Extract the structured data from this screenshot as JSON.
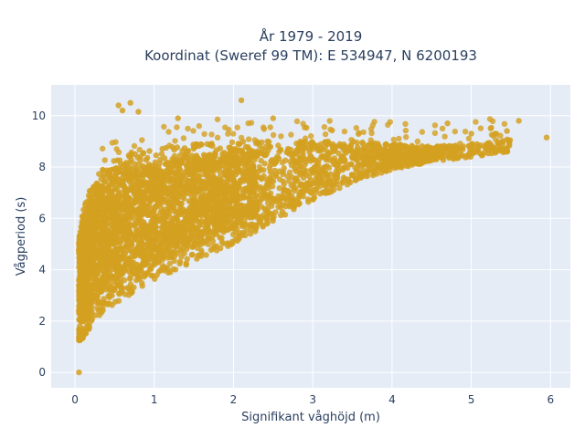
{
  "chart_data": {
    "type": "scatter",
    "title_line1": "År 1979 - 2019",
    "title_line2": "Koordinat (Sweref 99 TM): E 534947, N 6200193",
    "xlabel": "Signifikant våghöjd (m)",
    "ylabel": "Vågperiod (s)",
    "xlim": [
      -0.3,
      6.25
    ],
    "ylim": [
      -0.6,
      11.2
    ],
    "x_ticks": [
      0,
      1,
      2,
      3,
      4,
      5,
      6
    ],
    "y_ticks": [
      0,
      2,
      4,
      6,
      8,
      10
    ],
    "x_tick_labels": [
      "0",
      "1",
      "2",
      "3",
      "4",
      "5",
      "6"
    ],
    "y_tick_labels": [
      "0",
      "2",
      "4",
      "6",
      "8",
      "10"
    ],
    "grid": true,
    "marker_color": "#D4A020",
    "background_color": "#E5ECF6",
    "upper_envelope": [
      [
        0.05,
        5.2
      ],
      [
        0.1,
        6.3
      ],
      [
        0.2,
        7.2
      ],
      [
        0.3,
        7.8
      ],
      [
        0.5,
        8.3
      ],
      [
        0.8,
        8.6
      ],
      [
        1.0,
        8.7
      ],
      [
        1.5,
        8.9
      ],
      [
        2.0,
        9.0
      ],
      [
        2.5,
        9.0
      ],
      [
        3.0,
        9.0
      ],
      [
        3.5,
        9.0
      ],
      [
        4.0,
        8.9
      ],
      [
        4.5,
        8.8
      ],
      [
        5.0,
        8.9
      ],
      [
        5.5,
        9.1
      ],
      [
        5.95,
        9.2
      ]
    ],
    "lower_envelope": [
      [
        0.05,
        1.2
      ],
      [
        0.1,
        1.3
      ],
      [
        0.2,
        1.8
      ],
      [
        0.3,
        2.2
      ],
      [
        0.5,
        2.7
      ],
      [
        0.8,
        3.2
      ],
      [
        1.0,
        3.6
      ],
      [
        1.5,
        4.3
      ],
      [
        2.0,
        5.0
      ],
      [
        2.5,
        5.9
      ],
      [
        3.0,
        6.7
      ],
      [
        3.5,
        7.4
      ],
      [
        4.0,
        7.9
      ],
      [
        4.5,
        8.2
      ],
      [
        5.0,
        8.4
      ],
      [
        5.5,
        8.6
      ],
      [
        5.95,
        9.2
      ]
    ],
    "notable_points": [
      {
        "x": 0.05,
        "y": 0.0
      },
      {
        "x": 0.55,
        "y": 10.4
      },
      {
        "x": 0.7,
        "y": 10.5
      },
      {
        "x": 0.6,
        "y": 10.2
      },
      {
        "x": 2.1,
        "y": 10.6
      },
      {
        "x": 1.3,
        "y": 9.9
      },
      {
        "x": 5.95,
        "y": 9.15
      },
      {
        "x": 5.6,
        "y": 9.8
      },
      {
        "x": 5.45,
        "y": 9.4
      },
      {
        "x": 5.3,
        "y": 9.3
      },
      {
        "x": 5.0,
        "y": 9.3
      },
      {
        "x": 4.7,
        "y": 9.7
      },
      {
        "x": 5.1,
        "y": 8.55
      },
      {
        "x": 0.8,
        "y": 10.15
      },
      {
        "x": 2.5,
        "y": 9.9
      }
    ]
  }
}
